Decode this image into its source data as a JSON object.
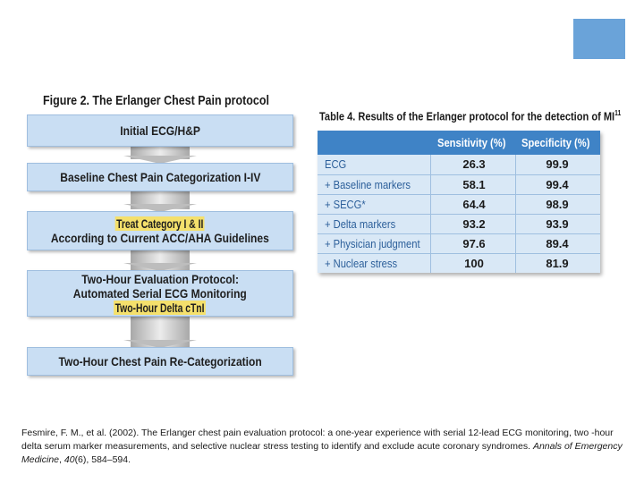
{
  "figure": {
    "title": "Figure 2. The Erlanger Chest Pain protocol",
    "steps": [
      {
        "lines": [
          "Initial ECG/H&P"
        ],
        "highlight": false
      },
      {
        "lines": [
          "Baseline Chest Pain Categorization I-IV"
        ],
        "highlight": false
      },
      {
        "lines": [
          "Treat Category I & II",
          "According to Current ACC/AHA Guidelines"
        ],
        "highlight": true,
        "highlight_line": 0
      },
      {
        "lines": [
          "Two-Hour Evaluation Protocol:",
          "Automated Serial ECG Monitoring",
          "Two-Hour Delta cTnI"
        ],
        "highlight": true,
        "highlight_line": 2
      },
      {
        "lines": [
          "Two-Hour Chest Pain Re-Categorization"
        ],
        "highlight": false
      }
    ]
  },
  "table": {
    "title": "Table 4. Results of the Erlanger protocol for the detection of MI",
    "title_ref": "11",
    "headers": [
      "Sensitivity (%)",
      "Specificity (%)"
    ],
    "rows": [
      {
        "label": "ECG",
        "sensitivity": "26.3",
        "specificity": "99.9"
      },
      {
        "label": "+ Baseline markers",
        "sensitivity": "58.1",
        "specificity": "99.4"
      },
      {
        "label": "+ SECG*",
        "sensitivity": "64.4",
        "specificity": "98.9"
      },
      {
        "label": "+ Delta markers",
        "sensitivity": "93.2",
        "specificity": "93.9"
      },
      {
        "label": "+ Physician judgment",
        "sensitivity": "97.6",
        "specificity": "89.4"
      },
      {
        "label": "+ Nuclear stress",
        "sensitivity": "100",
        "specificity": "81.9"
      }
    ]
  },
  "citation": {
    "before_journal": "Fesmire, F. M., et al. (2002). The Erlanger chest pain evaluation protocol: a one-year experience with serial 12-lead ECG monitoring, two -hour delta serum marker measurements, and selective nuclear stress testing to identify and exclude acute coronary syndromes. ",
    "journal": "Annals of Emergency Medicine",
    "after_journal_1": ", ",
    "volume": "40",
    "after_volume": "(6), 584–594."
  },
  "colors": {
    "accent_square": "#6aa3d9",
    "box_fill": "#c9def3",
    "highlight": "#f4e06c",
    "table_header": "#3f83c6",
    "table_body": "#d9e8f6"
  }
}
